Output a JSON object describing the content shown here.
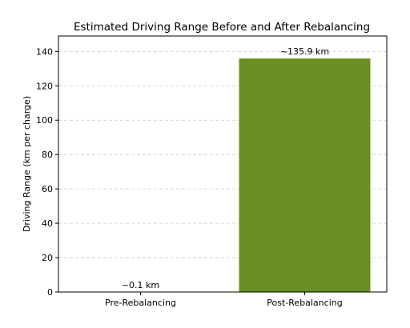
{
  "chart_data": {
    "type": "bar",
    "title": "Estimated Driving Range Before and After Rebalancing",
    "xlabel": "",
    "ylabel": "Driving Range (km per charge)",
    "categories": [
      "Pre-Rebalancing",
      "Post-Rebalancing"
    ],
    "values": [
      0.1,
      135.9
    ],
    "data_labels": [
      "~0.1 km",
      "~135.9 km"
    ],
    "ylim": [
      0,
      149
    ],
    "yticks": [
      0,
      20,
      40,
      60,
      80,
      100,
      120,
      140
    ],
    "grid": true,
    "bar_color": "#6b8e23"
  }
}
